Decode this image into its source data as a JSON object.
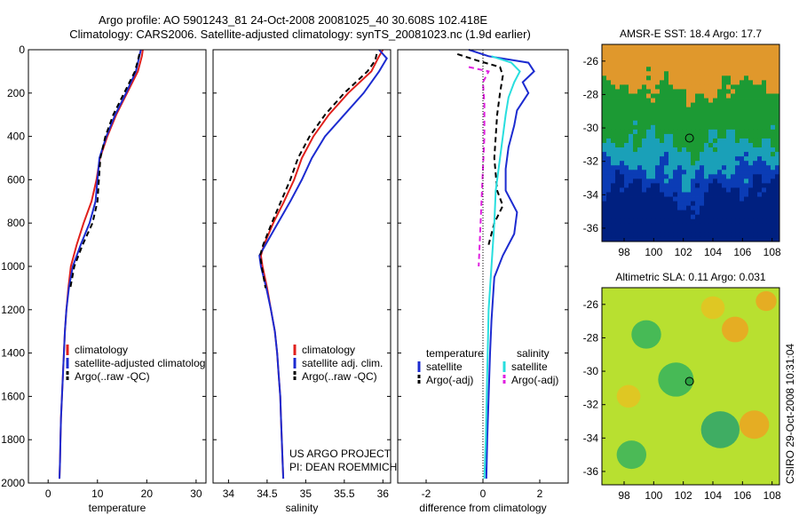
{
  "header": {
    "title_line1": "Argo profile: AO 5901243_81 24-Oct-2008 20081025_40 30.608S 102.418E",
    "title_line2": "Climatology: CARS2006. Satellite-adjusted climatology: synTS_20081023.nc (1.9d earlier)"
  },
  "footer": {
    "credit_line1": "US ARGO PROJECT",
    "credit_line2": "PI: DEAN ROEMMICH",
    "timestamp": "CSIRO 29-Oct-2008 10:31:04"
  },
  "colors": {
    "climatology": "#e0201c",
    "satellite": "#1c2bd0",
    "argo": "#000000",
    "cyan": "#28dede",
    "magenta": "#e020e0"
  },
  "chart_data": [
    {
      "type": "line",
      "id": "temperature",
      "xlabel": "temperature",
      "xlim": [
        -4,
        32
      ],
      "xticks": [
        "0",
        "10",
        "20",
        "30"
      ],
      "ylim": [
        2000,
        0
      ],
      "yticks": [
        "0",
        "200",
        "400",
        "600",
        "800",
        "1000",
        "1200",
        "1400",
        "1600",
        "1800",
        "2000"
      ],
      "y_reversed": true,
      "legend_position": "lower-right",
      "legend": [
        "climatology",
        "satellite-adjusted climatolog",
        "Argo(..raw -QC)"
      ],
      "series": [
        {
          "name": "climatology",
          "color": "#e0201c",
          "dash": "none",
          "points": [
            [
              19.2,
              0
            ],
            [
              19,
              30
            ],
            [
              18.2,
              100
            ],
            [
              16,
              200
            ],
            [
              13.8,
              300
            ],
            [
              12,
              400
            ],
            [
              10.5,
              500
            ],
            [
              9.8,
              600
            ],
            [
              8.8,
              700
            ],
            [
              7.2,
              800
            ],
            [
              5.8,
              900
            ],
            [
              4.6,
              1000
            ],
            [
              4.1,
              1100
            ],
            [
              3.7,
              1200
            ],
            [
              3.4,
              1300
            ],
            [
              3.2,
              1400
            ],
            [
              3,
              1500
            ],
            [
              2.8,
              1600
            ],
            [
              2.6,
              1700
            ],
            [
              2.5,
              1800
            ],
            [
              2.4,
              1900
            ],
            [
              2.3,
              1980
            ]
          ]
        },
        {
          "name": "satellite-adjusted climatolog",
          "color": "#1c2bd0",
          "dash": "none",
          "points": [
            [
              18.8,
              0
            ],
            [
              18.5,
              30
            ],
            [
              17.8,
              100
            ],
            [
              15.8,
              200
            ],
            [
              13.6,
              300
            ],
            [
              11.8,
              400
            ],
            [
              10.4,
              500
            ],
            [
              10,
              600
            ],
            [
              9.6,
              700
            ],
            [
              8.4,
              800
            ],
            [
              6.6,
              900
            ],
            [
              5,
              1000
            ],
            [
              4.2,
              1100
            ],
            [
              3.7,
              1200
            ],
            [
              3.4,
              1300
            ],
            [
              3.2,
              1400
            ],
            [
              3,
              1500
            ],
            [
              2.8,
              1600
            ],
            [
              2.6,
              1700
            ],
            [
              2.5,
              1800
            ],
            [
              2.4,
              1900
            ],
            [
              2.3,
              1980
            ]
          ]
        },
        {
          "name": "Argo(..raw -QC)",
          "color": "#000000",
          "dash": "6,4",
          "points": [
            [
              18.5,
              20
            ],
            [
              18.2,
              50
            ],
            [
              17.6,
              100
            ],
            [
              15.4,
              200
            ],
            [
              13.2,
              300
            ],
            [
              11.6,
              400
            ],
            [
              10.6,
              500
            ],
            [
              10.3,
              600
            ],
            [
              10,
              700
            ],
            [
              9,
              800
            ],
            [
              7,
              900
            ],
            [
              5.3,
              1000
            ],
            [
              4.5,
              1100
            ]
          ]
        }
      ]
    },
    {
      "type": "line",
      "id": "salinity",
      "xlabel": "salinity",
      "xlim": [
        33.8,
        36.1
      ],
      "xticks": [
        "34",
        "34.5",
        "35",
        "35.5",
        "36"
      ],
      "ylim": [
        2000,
        0
      ],
      "y_reversed": true,
      "legend_position": "lower-right",
      "legend": [
        "climatology",
        "satellite adj. clim.",
        "Argo(..raw -QC)"
      ],
      "series": [
        {
          "name": "climatology",
          "color": "#e0201c",
          "dash": "none",
          "points": [
            [
              36,
              0
            ],
            [
              35.95,
              30
            ],
            [
              35.85,
              100
            ],
            [
              35.55,
              200
            ],
            [
              35.3,
              300
            ],
            [
              35.1,
              400
            ],
            [
              34.95,
              500
            ],
            [
              34.85,
              600
            ],
            [
              34.72,
              700
            ],
            [
              34.58,
              800
            ],
            [
              34.46,
              900
            ],
            [
              34.42,
              950
            ],
            [
              34.44,
              1000
            ],
            [
              34.5,
              1100
            ],
            [
              34.55,
              1200
            ],
            [
              34.6,
              1300
            ],
            [
              34.63,
              1400
            ],
            [
              34.65,
              1500
            ],
            [
              34.67,
              1600
            ],
            [
              34.68,
              1700
            ],
            [
              34.69,
              1800
            ],
            [
              34.7,
              1900
            ],
            [
              34.71,
              1980
            ]
          ]
        },
        {
          "name": "satellite adj. clim.",
          "color": "#1c2bd0",
          "dash": "none",
          "points": [
            [
              35.95,
              0
            ],
            [
              36.05,
              40
            ],
            [
              35.95,
              100
            ],
            [
              35.75,
              200
            ],
            [
              35.5,
              300
            ],
            [
              35.25,
              400
            ],
            [
              35.08,
              500
            ],
            [
              34.95,
              600
            ],
            [
              34.8,
              700
            ],
            [
              34.64,
              800
            ],
            [
              34.48,
              900
            ],
            [
              34.4,
              950
            ],
            [
              34.42,
              1000
            ],
            [
              34.49,
              1100
            ],
            [
              34.55,
              1200
            ],
            [
              34.6,
              1300
            ],
            [
              34.63,
              1400
            ],
            [
              34.65,
              1500
            ],
            [
              34.67,
              1600
            ],
            [
              34.68,
              1700
            ],
            [
              34.69,
              1800
            ],
            [
              34.7,
              1900
            ],
            [
              34.71,
              1980
            ]
          ]
        },
        {
          "name": "Argo(..raw -QC)",
          "color": "#000000",
          "dash": "6,4",
          "points": [
            [
              35.92,
              20
            ],
            [
              35.9,
              50
            ],
            [
              35.8,
              100
            ],
            [
              35.5,
              200
            ],
            [
              35.25,
              300
            ],
            [
              35.05,
              400
            ],
            [
              34.9,
              500
            ],
            [
              34.8,
              600
            ],
            [
              34.68,
              700
            ],
            [
              34.56,
              800
            ],
            [
              34.45,
              900
            ],
            [
              34.41,
              950
            ],
            [
              34.43,
              1000
            ],
            [
              34.48,
              1100
            ]
          ]
        }
      ]
    },
    {
      "type": "line",
      "id": "difference",
      "xlabel": "difference from climatology",
      "xlim": [
        -3,
        3
      ],
      "xticks": [
        "-2",
        "0",
        "2"
      ],
      "ylim": [
        2000,
        0
      ],
      "y_reversed": true,
      "legend_position": "lower-center",
      "legend_columns": [
        {
          "heading": "temperature",
          "items": [
            "satellite",
            "Argo(-adj)"
          ]
        },
        {
          "heading": "salinity",
          "items": [
            "satellite",
            "Argo(-adj)"
          ]
        }
      ],
      "series": [
        {
          "name": "temperature satellite",
          "color": "#1c2bd0",
          "dash": "none",
          "points": [
            [
              -0.5,
              0
            ],
            [
              0.2,
              30
            ],
            [
              1.6,
              60
            ],
            [
              1.8,
              100
            ],
            [
              1.4,
              150
            ],
            [
              1.6,
              200
            ],
            [
              1.2,
              280
            ],
            [
              1.1,
              350
            ],
            [
              0.9,
              450
            ],
            [
              0.8,
              550
            ],
            [
              0.8,
              650
            ],
            [
              1.2,
              750
            ],
            [
              1.1,
              850
            ],
            [
              0.7,
              950
            ],
            [
              0.4,
              1050
            ],
            [
              0.35,
              1150
            ],
            [
              0.3,
              1250
            ],
            [
              0.25,
              1400
            ],
            [
              0.2,
              1600
            ],
            [
              0.15,
              1800
            ],
            [
              0.12,
              1980
            ]
          ]
        },
        {
          "name": "temperature Argo(-adj)",
          "color": "#000000",
          "dash": "6,4",
          "points": [
            [
              -0.9,
              20
            ],
            [
              -0.2,
              50
            ],
            [
              0.6,
              80
            ],
            [
              0.7,
              120
            ],
            [
              0.6,
              200
            ],
            [
              0.5,
              300
            ],
            [
              0.45,
              400
            ],
            [
              0.4,
              500
            ],
            [
              0.5,
              650
            ],
            [
              0.7,
              720
            ],
            [
              0.4,
              800
            ],
            [
              0.2,
              900
            ]
          ]
        },
        {
          "name": "salinity satellite",
          "color": "#28dede",
          "dash": "none",
          "points": [
            [
              0.3,
              30
            ],
            [
              1.0,
              60
            ],
            [
              1.3,
              100
            ],
            [
              1.1,
              150
            ],
            [
              0.9,
              220
            ],
            [
              0.8,
              300
            ],
            [
              0.7,
              400
            ],
            [
              0.55,
              550
            ],
            [
              0.45,
              650
            ],
            [
              0.4,
              800
            ],
            [
              0.3,
              1000
            ],
            [
              0.2,
              1200
            ],
            [
              0.15,
              1500
            ],
            [
              0.1,
              1800
            ],
            [
              0.05,
              1980
            ]
          ]
        },
        {
          "name": "salinity Argo(-adj)",
          "color": "#e020e0",
          "dash": "6,4",
          "points": [
            [
              -0.5,
              80
            ],
            [
              0.2,
              100
            ],
            [
              0,
              150
            ],
            [
              0.05,
              250
            ],
            [
              0.05,
              400
            ],
            [
              0,
              550
            ],
            [
              -0.05,
              700
            ],
            [
              -0.1,
              850
            ],
            [
              -0.15,
              1000
            ]
          ]
        },
        {
          "name": "zero",
          "color": "#000000",
          "dash": "1,2",
          "points": [
            [
              0,
              0
            ],
            [
              0,
              2000
            ]
          ]
        }
      ]
    },
    {
      "type": "heatmap",
      "id": "sst-map",
      "title": "AMSR-E SST: 18.4 Argo: 17.7",
      "xlim": [
        96.5,
        108.5
      ],
      "ylim": [
        -36.8,
        -25
      ],
      "xticks": [
        "98",
        "100",
        "102",
        "104",
        "106",
        "108"
      ],
      "yticks": [
        "-26",
        "-28",
        "-30",
        "-32",
        "-34",
        "-36"
      ],
      "argo_position": [
        102.418,
        -30.608
      ],
      "bands": [
        {
          "y_top": -25,
          "color": "#e0982c"
        },
        {
          "y_top": -27.5,
          "color": "#1c9a34"
        },
        {
          "y_top": -30.7,
          "color": "#1aa0b8"
        },
        {
          "y_top": -32.3,
          "color": "#0b3cb5"
        },
        {
          "y_top": -33.5,
          "color": "#002080"
        }
      ]
    },
    {
      "type": "heatmap",
      "id": "sla-map",
      "title": "Altimetric SLA: 0.11 Argo: 0.031",
      "xlim": [
        96.5,
        108.5
      ],
      "ylim": [
        -36.8,
        -25
      ],
      "xticks": [
        "98",
        "100",
        "102",
        "104",
        "106",
        "108"
      ],
      "yticks": [
        "-26",
        "-28",
        "-30",
        "-32",
        "-34",
        "-36"
      ],
      "argo_position": [
        102.418,
        -30.608
      ],
      "base_color": "#b8e030",
      "blobs": [
        {
          "x": 99.5,
          "y": -27.8,
          "r": 1.0,
          "color": "#2ab060"
        },
        {
          "x": 101.5,
          "y": -30.5,
          "r": 1.2,
          "color": "#2ab060"
        },
        {
          "x": 104.5,
          "y": -33.5,
          "r": 1.3,
          "color": "#20a070"
        },
        {
          "x": 98.5,
          "y": -35,
          "r": 1.0,
          "color": "#30b060"
        },
        {
          "x": 105.5,
          "y": -27.5,
          "r": 0.9,
          "color": "#f0a020"
        },
        {
          "x": 106.8,
          "y": -33.2,
          "r": 1.0,
          "color": "#f0a020"
        },
        {
          "x": 98.3,
          "y": -31.5,
          "r": 0.8,
          "color": "#e8c020"
        },
        {
          "x": 104,
          "y": -26.2,
          "r": 0.8,
          "color": "#e8c020"
        },
        {
          "x": 107.6,
          "y": -25.8,
          "r": 0.7,
          "color": "#f0a020"
        }
      ]
    }
  ]
}
